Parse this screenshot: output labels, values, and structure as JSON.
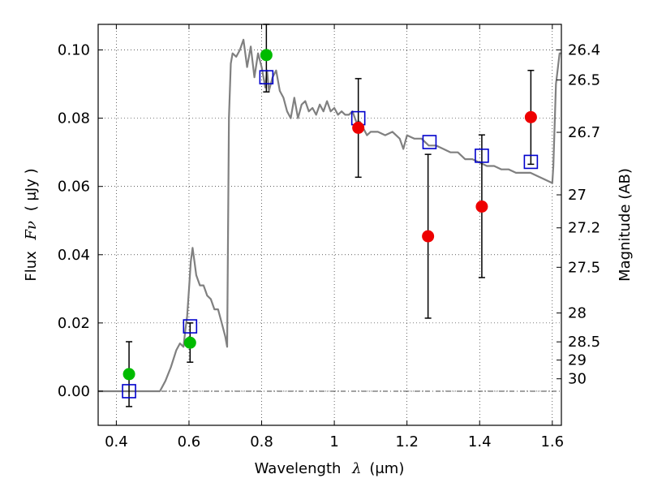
{
  "chart_data": {
    "type": "scatter",
    "xlabel_text": "Wavelength",
    "xlabel_symbol": "λ",
    "xlabel_unit": "(μm)",
    "ylabel_text": "Flux",
    "ylabel_symbol": "Fν",
    "ylabel_unit": "( μJy )",
    "y2label": "Magnitude (AB)",
    "xlim": [
      0.35,
      1.625
    ],
    "ylim": [
      -0.01,
      0.1075
    ],
    "grid": true,
    "x_ticks": [
      {
        "value": 0.4,
        "label": "0.4"
      },
      {
        "value": 0.6,
        "label": "0.6"
      },
      {
        "value": 0.8,
        "label": "0.8"
      },
      {
        "value": 1.0,
        "label": "1"
      },
      {
        "value": 1.2,
        "label": "1.2"
      },
      {
        "value": 1.4,
        "label": "1.4"
      },
      {
        "value": 1.6,
        "label": "1.6"
      }
    ],
    "y_ticks": [
      {
        "value": 0.0,
        "label": "0.00"
      },
      {
        "value": 0.02,
        "label": "0.02"
      },
      {
        "value": 0.04,
        "label": "0.04"
      },
      {
        "value": 0.06,
        "label": "0.06"
      },
      {
        "value": 0.08,
        "label": "0.08"
      },
      {
        "value": 0.1,
        "label": "0.10"
      }
    ],
    "magnitude_ticks": [
      {
        "mag": 26.4,
        "label": "26.4"
      },
      {
        "mag": 26.5,
        "label": "26.5"
      },
      {
        "mag": 26.7,
        "label": "26.7"
      },
      {
        "mag": 27.0,
        "label": "27"
      },
      {
        "mag": 27.2,
        "label": "27.2"
      },
      {
        "mag": 27.5,
        "label": "27.5"
      },
      {
        "mag": 28.0,
        "label": "28"
      },
      {
        "mag": 28.5,
        "label": "28.5"
      },
      {
        "mag": 29.0,
        "label": "29"
      },
      {
        "mag": 30.0,
        "label": "30"
      }
    ],
    "model_sed": {
      "color": "#808080",
      "points": [
        [
          0.35,
          0.0
        ],
        [
          0.52,
          0.0
        ],
        [
          0.535,
          0.003
        ],
        [
          0.55,
          0.007
        ],
        [
          0.565,
          0.012
        ],
        [
          0.575,
          0.014
        ],
        [
          0.585,
          0.013
        ],
        [
          0.59,
          0.018
        ],
        [
          0.595,
          0.022
        ],
        [
          0.6,
          0.03
        ],
        [
          0.605,
          0.038
        ],
        [
          0.61,
          0.042
        ],
        [
          0.615,
          0.038
        ],
        [
          0.62,
          0.034
        ],
        [
          0.63,
          0.031
        ],
        [
          0.64,
          0.031
        ],
        [
          0.65,
          0.028
        ],
        [
          0.66,
          0.027
        ],
        [
          0.67,
          0.024
        ],
        [
          0.68,
          0.024
        ],
        [
          0.69,
          0.02
        ],
        [
          0.7,
          0.016
        ],
        [
          0.705,
          0.013
        ],
        [
          0.71,
          0.08
        ],
        [
          0.715,
          0.096
        ],
        [
          0.72,
          0.099
        ],
        [
          0.73,
          0.098
        ],
        [
          0.74,
          0.1
        ],
        [
          0.75,
          0.103
        ],
        [
          0.76,
          0.095
        ],
        [
          0.77,
          0.101
        ],
        [
          0.78,
          0.092
        ],
        [
          0.79,
          0.099
        ],
        [
          0.8,
          0.095
        ],
        [
          0.81,
          0.089
        ],
        [
          0.815,
          0.094
        ],
        [
          0.82,
          0.088
        ],
        [
          0.83,
          0.092
        ],
        [
          0.84,
          0.094
        ],
        [
          0.85,
          0.088
        ],
        [
          0.86,
          0.086
        ],
        [
          0.87,
          0.082
        ],
        [
          0.88,
          0.08
        ],
        [
          0.89,
          0.086
        ],
        [
          0.9,
          0.08
        ],
        [
          0.91,
          0.084
        ],
        [
          0.92,
          0.085
        ],
        [
          0.93,
          0.082
        ],
        [
          0.94,
          0.083
        ],
        [
          0.95,
          0.081
        ],
        [
          0.96,
          0.084
        ],
        [
          0.97,
          0.082
        ],
        [
          0.98,
          0.085
        ],
        [
          0.99,
          0.082
        ],
        [
          1.0,
          0.083
        ],
        [
          1.01,
          0.081
        ],
        [
          1.02,
          0.082
        ],
        [
          1.03,
          0.081
        ],
        [
          1.04,
          0.081
        ],
        [
          1.05,
          0.082
        ],
        [
          1.06,
          0.079
        ],
        [
          1.07,
          0.079
        ],
        [
          1.08,
          0.077
        ],
        [
          1.09,
          0.075
        ],
        [
          1.1,
          0.076
        ],
        [
          1.12,
          0.076
        ],
        [
          1.14,
          0.075
        ],
        [
          1.16,
          0.076
        ],
        [
          1.18,
          0.074
        ],
        [
          1.19,
          0.071
        ],
        [
          1.2,
          0.075
        ],
        [
          1.22,
          0.074
        ],
        [
          1.24,
          0.074
        ],
        [
          1.26,
          0.072
        ],
        [
          1.28,
          0.072
        ],
        [
          1.3,
          0.071
        ],
        [
          1.32,
          0.07
        ],
        [
          1.34,
          0.07
        ],
        [
          1.36,
          0.068
        ],
        [
          1.38,
          0.068
        ],
        [
          1.4,
          0.067
        ],
        [
          1.42,
          0.066
        ],
        [
          1.44,
          0.066
        ],
        [
          1.46,
          0.065
        ],
        [
          1.48,
          0.065
        ],
        [
          1.5,
          0.064
        ],
        [
          1.52,
          0.064
        ],
        [
          1.54,
          0.064
        ],
        [
          1.56,
          0.063
        ],
        [
          1.58,
          0.062
        ],
        [
          1.6,
          0.061
        ],
        [
          1.603,
          0.066
        ],
        [
          1.61,
          0.09
        ],
        [
          1.62,
          0.099
        ],
        [
          1.625,
          0.099
        ]
      ]
    },
    "series": [
      {
        "marker": "circle",
        "color": "#00bb00",
        "points": [
          {
            "x": 0.435,
            "y": 0.005,
            "ylo": -0.0045,
            "yhi": 0.0145
          },
          {
            "x": 0.603,
            "y": 0.0142,
            "ylo": 0.0085,
            "yhi": 0.02
          },
          {
            "x": 0.813,
            "y": 0.0985,
            "ylo": 0.0877,
            "yhi": 0.1075
          }
        ]
      },
      {
        "marker": "circle",
        "color": "#ee0000",
        "points": [
          {
            "x": 1.066,
            "y": 0.0772,
            "ylo": 0.0627,
            "yhi": 0.0916
          },
          {
            "x": 1.258,
            "y": 0.0454,
            "ylo": 0.0214,
            "yhi": 0.0694
          },
          {
            "x": 1.406,
            "y": 0.0541,
            "ylo": 0.0333,
            "yhi": 0.0751
          },
          {
            "x": 1.541,
            "y": 0.0803,
            "ylo": 0.0665,
            "yhi": 0.094
          }
        ]
      },
      {
        "marker": "square",
        "color": "#0000cc",
        "points": [
          {
            "x": 0.435,
            "y": 0.0
          },
          {
            "x": 0.603,
            "y": 0.019
          },
          {
            "x": 0.813,
            "y": 0.092
          },
          {
            "x": 1.066,
            "y": 0.08
          },
          {
            "x": 1.262,
            "y": 0.073
          },
          {
            "x": 1.406,
            "y": 0.069
          },
          {
            "x": 1.541,
            "y": 0.0672
          }
        ]
      }
    ]
  }
}
